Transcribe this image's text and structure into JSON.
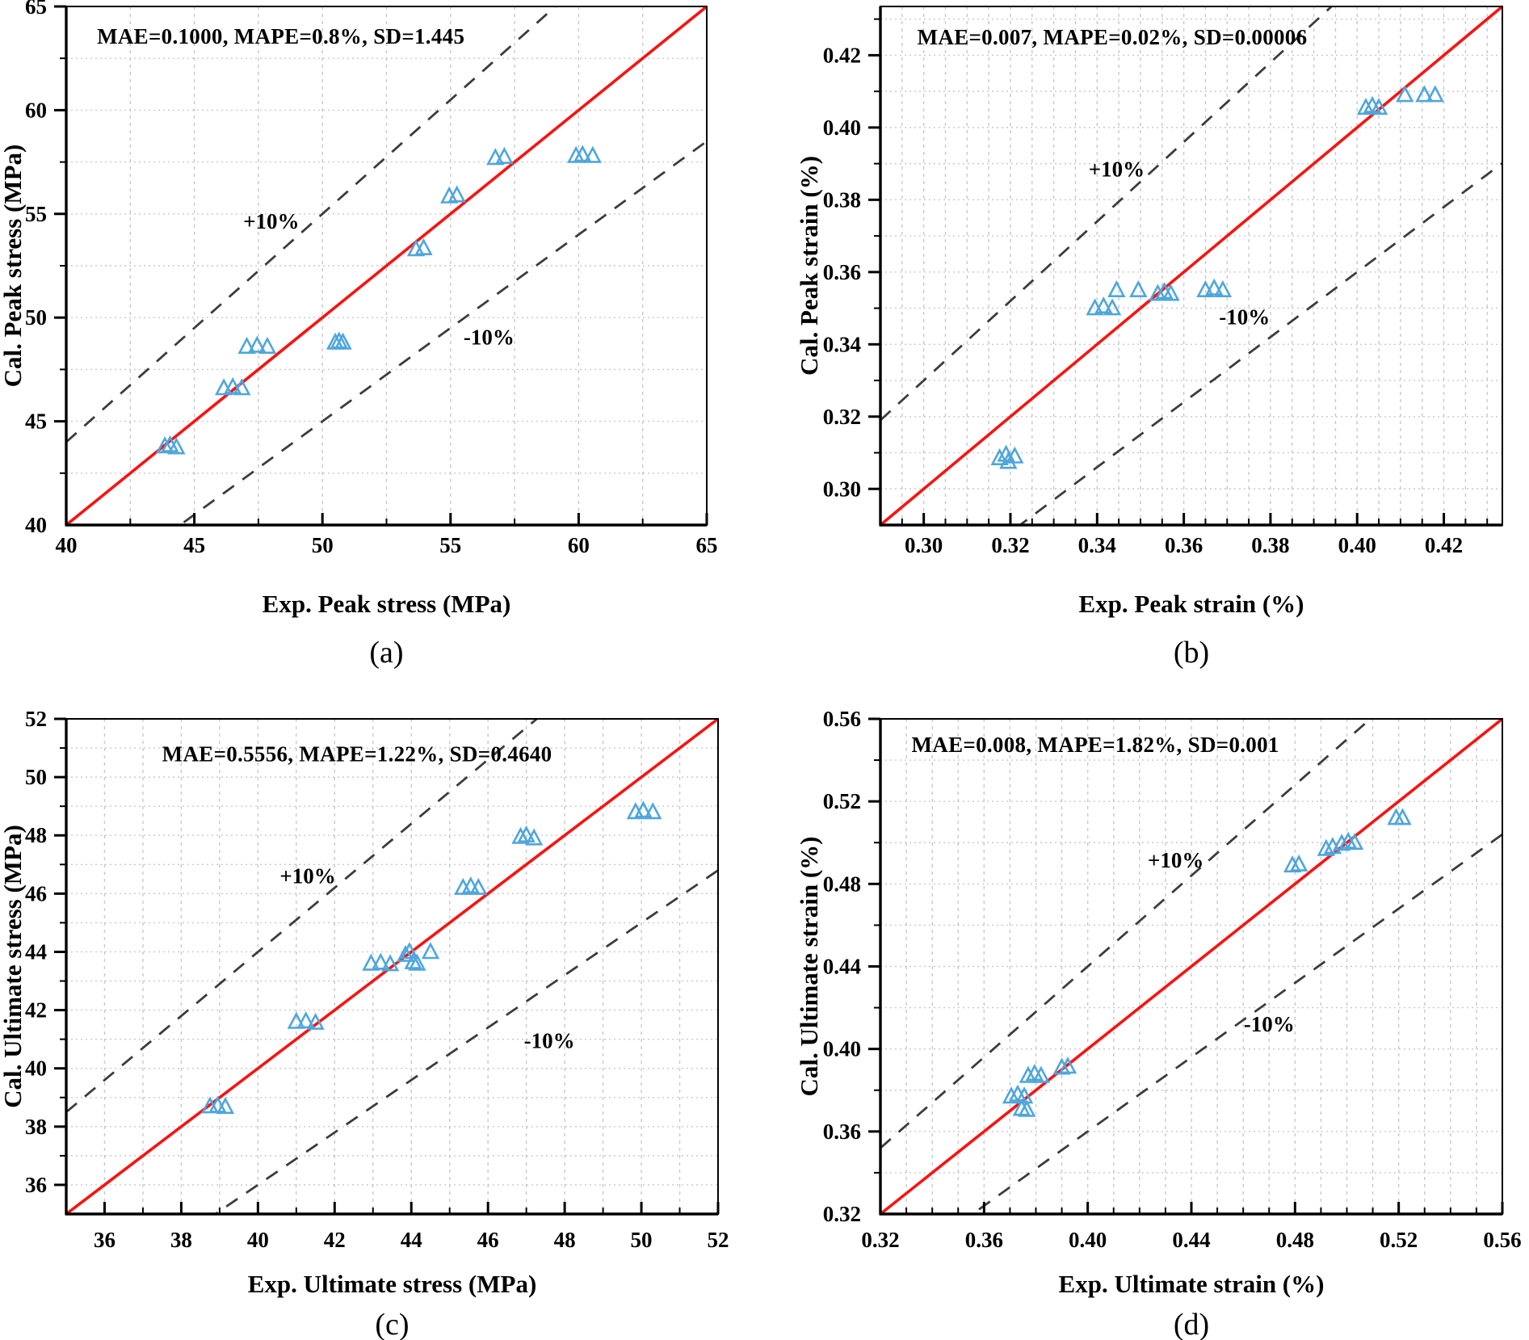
{
  "figure": {
    "background": "#ffffff",
    "marker_shape": "open-triangle-up"
  },
  "colors": {
    "identity_line": "#f81311",
    "tolerance_line": "#3c3c3c",
    "marker_stroke": "#4fa6dc",
    "grid": "#c9c9c9",
    "axis": "#000000",
    "text": "#000000"
  },
  "chart_data": [
    {
      "id": "a",
      "type": "scatter",
      "caption": "(a)",
      "stats_label": "MAE=0.1000, MAPE=0.8%, SD=1.445",
      "xlabel": "Exp. Peak stress (MPa)",
      "ylabel": "Cal. Peak stress (MPa)",
      "xlim": [
        40,
        65
      ],
      "ylim": [
        40,
        65
      ],
      "x_tick_values": [
        40,
        45,
        50,
        55,
        60,
        65
      ],
      "y_tick_values": [
        40,
        45,
        50,
        55,
        60,
        65
      ],
      "x_tick_labels": [
        "40",
        "45",
        "50",
        "55",
        "60",
        "65"
      ],
      "y_tick_labels": [
        "40",
        "45",
        "50",
        "55",
        "60",
        "65"
      ],
      "minor_step_x": 2.5,
      "minor_step_y": 2.5,
      "grid": true,
      "identity_line": "y = x",
      "tolerance_band": "±10%",
      "plus_label": {
        "text": "+10%",
        "x": 48.0,
        "y": 54.3
      },
      "minus_label": {
        "text": "-10%",
        "x": 56.5,
        "y": 48.7
      },
      "stats_pos": {
        "x": 41.2,
        "y": 63.2
      },
      "series": [
        {
          "name": "specimens",
          "points": [
            [
              43.85,
              43.8
            ],
            [
              44.05,
              43.85
            ],
            [
              44.3,
              43.75
            ],
            [
              46.15,
              46.6
            ],
            [
              46.5,
              46.65
            ],
            [
              46.85,
              46.6
            ],
            [
              47.05,
              48.6
            ],
            [
              47.45,
              48.65
            ],
            [
              47.85,
              48.6
            ],
            [
              50.5,
              48.8
            ],
            [
              50.65,
              48.85
            ],
            [
              50.8,
              48.8
            ],
            [
              53.65,
              53.3
            ],
            [
              53.95,
              53.35
            ],
            [
              54.95,
              55.85
            ],
            [
              55.25,
              55.9
            ],
            [
              56.75,
              57.7
            ],
            [
              57.1,
              57.75
            ],
            [
              59.9,
              57.8
            ],
            [
              60.15,
              57.85
            ],
            [
              60.55,
              57.8
            ]
          ]
        }
      ]
    },
    {
      "id": "b",
      "type": "scatter",
      "caption": "(b)",
      "stats_label": "MAE=0.007, MAPE=0.02%, SD=0.00006",
      "xlabel": "Exp. Peak strain (%)",
      "ylabel": "Cal. Peak strain (%)",
      "xlim": [
        0.29,
        0.4335
      ],
      "ylim": [
        0.29,
        0.4335
      ],
      "x_tick_values": [
        0.3,
        0.32,
        0.34,
        0.36,
        0.38,
        0.4,
        0.42
      ],
      "y_tick_values": [
        0.3,
        0.32,
        0.34,
        0.36,
        0.38,
        0.4,
        0.42
      ],
      "x_tick_labels": [
        "0.30",
        "0.32",
        "0.34",
        "0.36",
        "0.38",
        "0.40",
        "0.42"
      ],
      "y_tick_labels": [
        "0.30",
        "0.32",
        "0.34",
        "0.36",
        "0.38",
        "0.40",
        "0.42"
      ],
      "minor_step_x": 0.005,
      "minor_step_y": 0.01,
      "grid": true,
      "identity_line": "y = x",
      "tolerance_band": "±10%",
      "plus_label": {
        "text": "+10%",
        "x": 0.3445,
        "y": 0.3865
      },
      "minus_label": {
        "text": "-10%",
        "x": 0.374,
        "y": 0.3455
      },
      "stats_pos": {
        "x": 0.2985,
        "y": 0.423
      },
      "series": [
        {
          "name": "specimens",
          "points": [
            [
              0.3175,
              0.3085
            ],
            [
              0.319,
              0.3095
            ],
            [
              0.321,
              0.309
            ],
            [
              0.3195,
              0.3075
            ],
            [
              0.3395,
              0.35
            ],
            [
              0.3415,
              0.3505
            ],
            [
              0.3435,
              0.35
            ],
            [
              0.3445,
              0.355
            ],
            [
              0.3495,
              0.355
            ],
            [
              0.354,
              0.354
            ],
            [
              0.3555,
              0.3545
            ],
            [
              0.357,
              0.354
            ],
            [
              0.365,
              0.355
            ],
            [
              0.367,
              0.3555
            ],
            [
              0.369,
              0.355
            ],
            [
              0.402,
              0.4055
            ],
            [
              0.4035,
              0.406
            ],
            [
              0.405,
              0.4055
            ],
            [
              0.411,
              0.409
            ],
            [
              0.4155,
              0.409
            ],
            [
              0.418,
              0.409
            ]
          ]
        }
      ]
    },
    {
      "id": "c",
      "type": "scatter",
      "caption": "(c)",
      "stats_label": "MAE=0.5556, MAPE=1.22%, SD=0.4640",
      "xlabel": "Exp. Ultimate stress (MPa)",
      "ylabel": "Cal. Ultimate stress (MPa)",
      "xlim": [
        35,
        52
      ],
      "ylim": [
        35,
        52
      ],
      "x_tick_values": [
        36,
        38,
        40,
        42,
        44,
        46,
        48,
        50,
        52
      ],
      "y_tick_values": [
        36,
        38,
        40,
        42,
        44,
        46,
        48,
        50,
        52
      ],
      "x_tick_labels": [
        "36",
        "38",
        "40",
        "42",
        "44",
        "46",
        "48",
        "50",
        "52"
      ],
      "y_tick_labels": [
        "36",
        "38",
        "40",
        "42",
        "44",
        "46",
        "48",
        "50",
        "52"
      ],
      "minor_step_x": 1,
      "minor_step_y": 1,
      "grid": true,
      "identity_line": "y = x",
      "tolerance_band": "±10%",
      "plus_label": {
        "text": "+10%",
        "x": 41.3,
        "y": 46.35
      },
      "minus_label": {
        "text": "-10%",
        "x": 47.6,
        "y": 40.7
      },
      "stats_pos": {
        "x": 37.5,
        "y": 50.55
      },
      "series": [
        {
          "name": "specimens",
          "points": [
            [
              38.75,
              38.7
            ],
            [
              38.95,
              38.72
            ],
            [
              39.15,
              38.68
            ],
            [
              41.0,
              41.6
            ],
            [
              41.25,
              41.62
            ],
            [
              41.5,
              41.57
            ],
            [
              42.95,
              43.6
            ],
            [
              43.2,
              43.63
            ],
            [
              43.45,
              43.58
            ],
            [
              43.85,
              43.9
            ],
            [
              43.95,
              44.0
            ],
            [
              44.05,
              43.65
            ],
            [
              44.15,
              43.6
            ],
            [
              44.5,
              44.0
            ],
            [
              45.35,
              46.2
            ],
            [
              45.55,
              46.25
            ],
            [
              45.75,
              46.2
            ],
            [
              46.85,
              47.95
            ],
            [
              47.0,
              48.0
            ],
            [
              47.2,
              47.9
            ],
            [
              49.85,
              48.8
            ],
            [
              50.05,
              48.85
            ],
            [
              50.3,
              48.8
            ]
          ]
        }
      ]
    },
    {
      "id": "d",
      "type": "scatter",
      "caption": "(d)",
      "stats_label": "MAE=0.008, MAPE=1.82%, SD=0.001",
      "xlabel": "Exp. Ultimate strain (%)",
      "ylabel": "Cal. Ultimate strain (%)",
      "xlim": [
        0.32,
        0.56
      ],
      "ylim": [
        0.32,
        0.56
      ],
      "x_tick_values": [
        0.32,
        0.36,
        0.4,
        0.44,
        0.48,
        0.52,
        0.56
      ],
      "y_tick_values": [
        0.32,
        0.36,
        0.4,
        0.44,
        0.48,
        0.52,
        0.56
      ],
      "x_tick_labels": [
        "0.32",
        "0.36",
        "0.40",
        "0.44",
        "0.48",
        "0.52",
        "0.56"
      ],
      "y_tick_labels": [
        "0.32",
        "0.36",
        "0.40",
        "0.44",
        "0.48",
        "0.52",
        "0.56"
      ],
      "minor_step_x": 0.01,
      "minor_step_y": 0.02,
      "grid": true,
      "identity_line": "y = x",
      "tolerance_band": "±10%",
      "plus_label": {
        "text": "+10%",
        "x": 0.434,
        "y": 0.488
      },
      "minus_label": {
        "text": "-10%",
        "x": 0.47,
        "y": 0.4085
      },
      "stats_pos": {
        "x": 0.332,
        "y": 0.544
      },
      "series": [
        {
          "name": "specimens",
          "points": [
            [
              0.3705,
              0.377
            ],
            [
              0.373,
              0.378
            ],
            [
              0.3755,
              0.377
            ],
            [
              0.3745,
              0.371
            ],
            [
              0.3765,
              0.3705
            ],
            [
              0.377,
              0.387
            ],
            [
              0.3795,
              0.388
            ],
            [
              0.382,
              0.387
            ],
            [
              0.39,
              0.391
            ],
            [
              0.3923,
              0.3915
            ],
            [
              0.479,
              0.489
            ],
            [
              0.4815,
              0.4895
            ],
            [
              0.492,
              0.497
            ],
            [
              0.4945,
              0.498
            ],
            [
              0.498,
              0.4995
            ],
            [
              0.5005,
              0.5005
            ],
            [
              0.503,
              0.5
            ],
            [
              0.519,
              0.512
            ],
            [
              0.5215,
              0.512
            ]
          ]
        }
      ]
    }
  ]
}
